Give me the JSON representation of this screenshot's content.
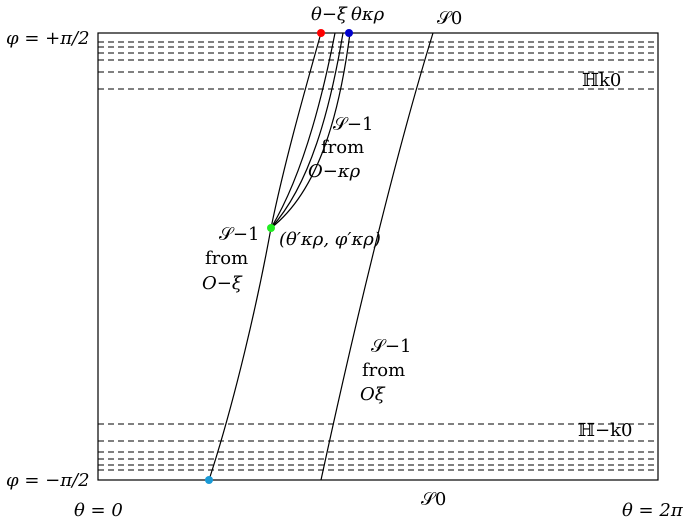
{
  "labels": {
    "phi_top": "φ = +π/2",
    "phi_bottom": "φ = −π/2",
    "theta_left": "θ = 0",
    "theta_right": "θ = 2π",
    "theta_minus_xi": "θ−ξ",
    "theta_kappa_rho": "θκρ",
    "S0_top": "𝒮0",
    "S0_bottom": "𝒮0",
    "H_k0": "ℍk0",
    "H_minus_k0": "ℍ−k0",
    "s_minus1_kappa_rho_l1": "𝒮−1",
    "s_minus1_kappa_rho_l2": "from",
    "s_minus1_kappa_rho_l3": "O−κρ",
    "s_minus1_minus_xi_l1": "𝒮−1",
    "s_minus1_minus_xi_l2": "from",
    "s_minus1_minus_xi_l3": "O−ξ",
    "s_minus1_xi_l1": "𝒮−1",
    "s_minus1_xi_l2": "from",
    "s_minus1_xi_l3": "Oξ",
    "point_label": "(θ′κρ, φ′κρ)"
  },
  "colors": {
    "red_point": "#ff0000",
    "blue_point": "#0000cc",
    "green_point": "#22ee22",
    "cyan_point": "#1a9ad6",
    "line": "#000000"
  }
}
